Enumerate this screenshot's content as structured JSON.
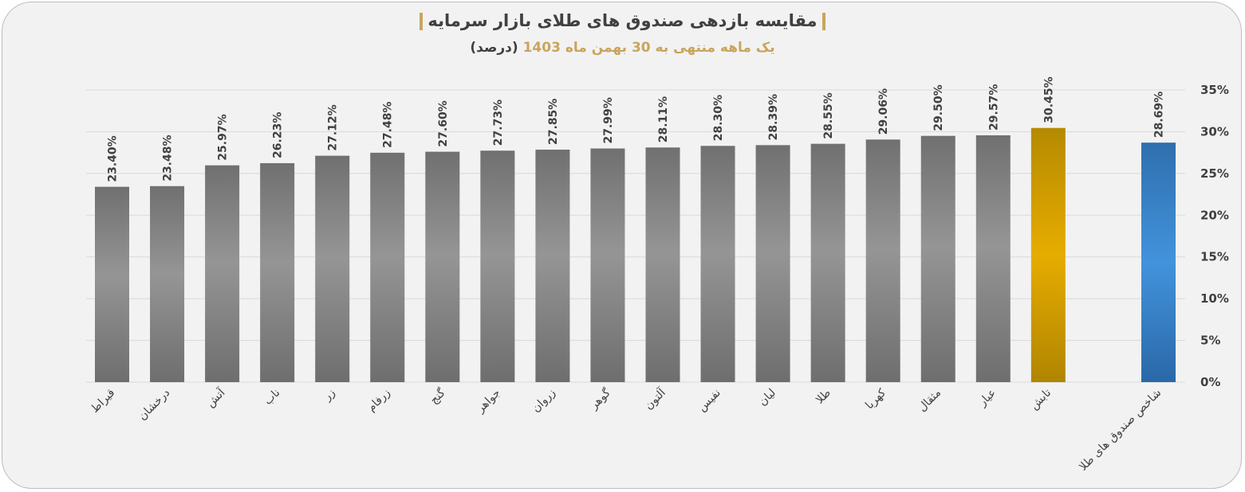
{
  "title": "مقایسه بازدهی صندوق های طلای بازار سرمایه",
  "subtitle": {
    "main": "یک ماهه منتهی به 30 بهمن ماه 1403",
    "unit": "(درصد)"
  },
  "colors": {
    "gray_bars": "#7f7f7f",
    "highlight_bar": "#e6ac00",
    "index_bar": "#3f8fd6",
    "accent": "#c9a55c"
  },
  "chart_data": {
    "type": "bar",
    "title": "مقایسه بازدهی صندوق های طلای بازار سرمایه",
    "subtitle": "یک ماهه منتهی به 30 بهمن ماه 1403 (درصد)",
    "categories": [
      "قیراط",
      "درخشان",
      "آتش",
      "ناب",
      "زر",
      "زرفام",
      "گنج",
      "جواهر",
      "زروان",
      "گوهر",
      "آلتون",
      "نفیس",
      "لیان",
      "طلا",
      "کهربا",
      "مثقال",
      "عیار",
      "تابش",
      "شاخص صندوق های طلا"
    ],
    "values": [
      23.4,
      23.48,
      25.97,
      26.23,
      27.12,
      27.48,
      27.6,
      27.73,
      27.85,
      27.99,
      28.11,
      28.3,
      28.39,
      28.55,
      29.06,
      29.5,
      29.57,
      30.45,
      28.69
    ],
    "labels": [
      "23.40%",
      "23.48%",
      "25.97%",
      "26.23%",
      "27.12%",
      "27.48%",
      "27.60%",
      "27.73%",
      "27.85%",
      "27.99%",
      "28.11%",
      "28.30%",
      "28.39%",
      "28.55%",
      "29.06%",
      "29.50%",
      "29.57%",
      "30.45%",
      "28.69%"
    ],
    "highlight": [
      "",
      "",
      "",
      "",
      "",
      "",
      "",
      "",
      "",
      "",
      "",
      "",
      "",
      "",
      "",
      "",
      "",
      "gold",
      "index"
    ],
    "yticks": [
      "0%",
      "5%",
      "10%",
      "15%",
      "20%",
      "25%",
      "30%",
      "35%"
    ],
    "ylim": [
      0,
      35
    ],
    "yaxis_position": "right",
    "grid": true,
    "legend": "none"
  }
}
